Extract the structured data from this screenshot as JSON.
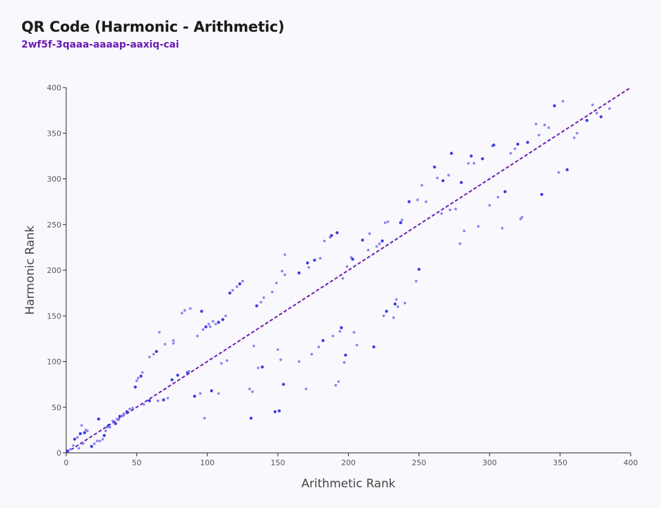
{
  "header": {
    "title": "QR Code (Harmonic - Arithmetic)",
    "subtitle": "2wf5f-3qaaa-aaaap-aaxiq-cai"
  },
  "colors": {
    "background": "#f9f8fc",
    "subtitle": "#6a1bb3",
    "diagonal": "#6a1bb3",
    "point_dark": "#3b3ee0",
    "point_light": "#8b84f0",
    "axis": "#222222"
  },
  "chart_data": {
    "type": "scatter",
    "xlabel": "Arithmetic Rank",
    "ylabel": "Harmonic Rank",
    "xlim": [
      0,
      400
    ],
    "ylim": [
      0,
      400
    ],
    "xticks": [
      0,
      50,
      100,
      150,
      200,
      250,
      300,
      350,
      400
    ],
    "yticks": [
      0,
      50,
      100,
      150,
      200,
      250,
      300,
      350,
      400
    ],
    "reference_line": {
      "from": [
        0,
        0
      ],
      "to": [
        400,
        400
      ],
      "style": "dashed"
    },
    "grid": false,
    "points": [
      [
        1,
        2
      ],
      [
        3,
        4
      ],
      [
        5,
        8
      ],
      [
        6,
        15
      ],
      [
        8,
        17
      ],
      [
        9,
        5
      ],
      [
        10,
        21
      ],
      [
        11,
        30
      ],
      [
        12,
        10
      ],
      [
        13,
        22
      ],
      [
        14,
        25
      ],
      [
        15,
        24
      ],
      [
        18,
        7
      ],
      [
        20,
        10
      ],
      [
        22,
        13
      ],
      [
        23,
        37
      ],
      [
        24,
        13
      ],
      [
        26,
        15
      ],
      [
        27,
        19
      ],
      [
        28,
        24
      ],
      [
        29,
        28
      ],
      [
        30,
        30
      ],
      [
        31,
        28
      ],
      [
        33,
        35
      ],
      [
        35,
        32
      ],
      [
        36,
        37
      ],
      [
        37,
        36
      ],
      [
        38,
        40
      ],
      [
        40,
        41
      ],
      [
        41,
        43
      ],
      [
        43,
        45
      ],
      [
        45,
        48
      ],
      [
        47,
        49
      ],
      [
        49,
        72
      ],
      [
        50,
        79
      ],
      [
        51,
        82
      ],
      [
        53,
        84
      ],
      [
        54,
        88
      ],
      [
        55,
        53
      ],
      [
        59,
        57
      ],
      [
        59,
        105
      ],
      [
        62,
        108
      ],
      [
        64,
        111
      ],
      [
        65,
        57
      ],
      [
        66,
        132
      ],
      [
        69,
        58
      ],
      [
        70,
        119
      ],
      [
        72,
        60
      ],
      [
        75,
        80
      ],
      [
        76,
        123
      ],
      [
        76,
        120
      ],
      [
        79,
        85
      ],
      [
        82,
        153
      ],
      [
        84,
        156
      ],
      [
        86,
        88
      ],
      [
        87,
        89
      ],
      [
        88,
        158
      ],
      [
        91,
        62
      ],
      [
        93,
        128
      ],
      [
        95,
        65
      ],
      [
        96,
        155
      ],
      [
        97,
        135
      ],
      [
        98,
        38
      ],
      [
        99,
        138
      ],
      [
        101,
        141
      ],
      [
        102,
        138
      ],
      [
        103,
        68
      ],
      [
        104,
        144
      ],
      [
        106,
        141
      ],
      [
        108,
        143
      ],
      [
        108,
        65
      ],
      [
        110,
        98
      ],
      [
        111,
        146
      ],
      [
        113,
        150
      ],
      [
        114,
        101
      ],
      [
        116,
        175
      ],
      [
        118,
        178
      ],
      [
        121,
        182
      ],
      [
        123,
        185
      ],
      [
        125,
        188
      ],
      [
        130,
        70
      ],
      [
        131,
        38
      ],
      [
        132,
        67
      ],
      [
        133,
        117
      ],
      [
        135,
        161
      ],
      [
        136,
        93
      ],
      [
        138,
        165
      ],
      [
        139,
        94
      ],
      [
        140,
        170
      ],
      [
        146,
        176
      ],
      [
        148,
        45
      ],
      [
        149,
        186
      ],
      [
        150,
        113
      ],
      [
        151,
        46
      ],
      [
        152,
        102
      ],
      [
        153,
        199
      ],
      [
        154,
        75
      ],
      [
        155,
        195
      ],
      [
        155,
        217
      ],
      [
        165,
        197
      ],
      [
        165,
        100
      ],
      [
        170,
        70
      ],
      [
        171,
        208
      ],
      [
        172,
        203
      ],
      [
        174,
        108
      ],
      [
        176,
        211
      ],
      [
        179,
        116
      ],
      [
        180,
        213
      ],
      [
        182,
        123
      ],
      [
        183,
        232
      ],
      [
        187,
        236
      ],
      [
        188,
        238
      ],
      [
        189,
        128
      ],
      [
        191,
        74
      ],
      [
        192,
        241
      ],
      [
        193,
        78
      ],
      [
        194,
        133
      ],
      [
        195,
        137
      ],
      [
        196,
        191
      ],
      [
        197,
        99
      ],
      [
        198,
        107
      ],
      [
        199,
        204
      ],
      [
        202,
        214
      ],
      [
        203,
        212
      ],
      [
        204,
        132
      ],
      [
        206,
        118
      ],
      [
        210,
        233
      ],
      [
        214,
        222
      ],
      [
        215,
        240
      ],
      [
        218,
        116
      ],
      [
        220,
        226
      ],
      [
        222,
        229
      ],
      [
        224,
        232
      ],
      [
        225,
        150
      ],
      [
        226,
        252
      ],
      [
        227,
        155
      ],
      [
        228,
        253
      ],
      [
        232,
        148
      ],
      [
        233,
        163
      ],
      [
        234,
        168
      ],
      [
        235,
        160
      ],
      [
        237,
        252
      ],
      [
        238,
        255
      ],
      [
        240,
        164
      ],
      [
        243,
        275
      ],
      [
        248,
        188
      ],
      [
        249,
        277
      ],
      [
        250,
        201
      ],
      [
        252,
        293
      ],
      [
        255,
        275
      ],
      [
        261,
        313
      ],
      [
        263,
        301
      ],
      [
        266,
        262
      ],
      [
        267,
        298
      ],
      [
        271,
        304
      ],
      [
        272,
        266
      ],
      [
        273,
        328
      ],
      [
        276,
        267
      ],
      [
        279,
        229
      ],
      [
        280,
        296
      ],
      [
        282,
        243
      ],
      [
        285,
        317
      ],
      [
        287,
        325
      ],
      [
        289,
        317
      ],
      [
        292,
        248
      ],
      [
        295,
        322
      ],
      [
        300,
        271
      ],
      [
        302,
        336
      ],
      [
        303,
        337
      ],
      [
        306,
        280
      ],
      [
        309,
        246
      ],
      [
        311,
        286
      ],
      [
        315,
        328
      ],
      [
        318,
        333
      ],
      [
        320,
        338
      ],
      [
        322,
        256
      ],
      [
        323,
        258
      ],
      [
        327,
        340
      ],
      [
        333,
        360
      ],
      [
        335,
        348
      ],
      [
        337,
        283
      ],
      [
        339,
        359
      ],
      [
        342,
        356
      ],
      [
        346,
        380
      ],
      [
        349,
        307
      ],
      [
        352,
        385
      ],
      [
        355,
        310
      ],
      [
        360,
        345
      ],
      [
        362,
        350
      ],
      [
        369,
        364
      ],
      [
        373,
        381
      ],
      [
        376,
        372
      ],
      [
        379,
        368
      ],
      [
        385,
        377
      ]
    ]
  }
}
